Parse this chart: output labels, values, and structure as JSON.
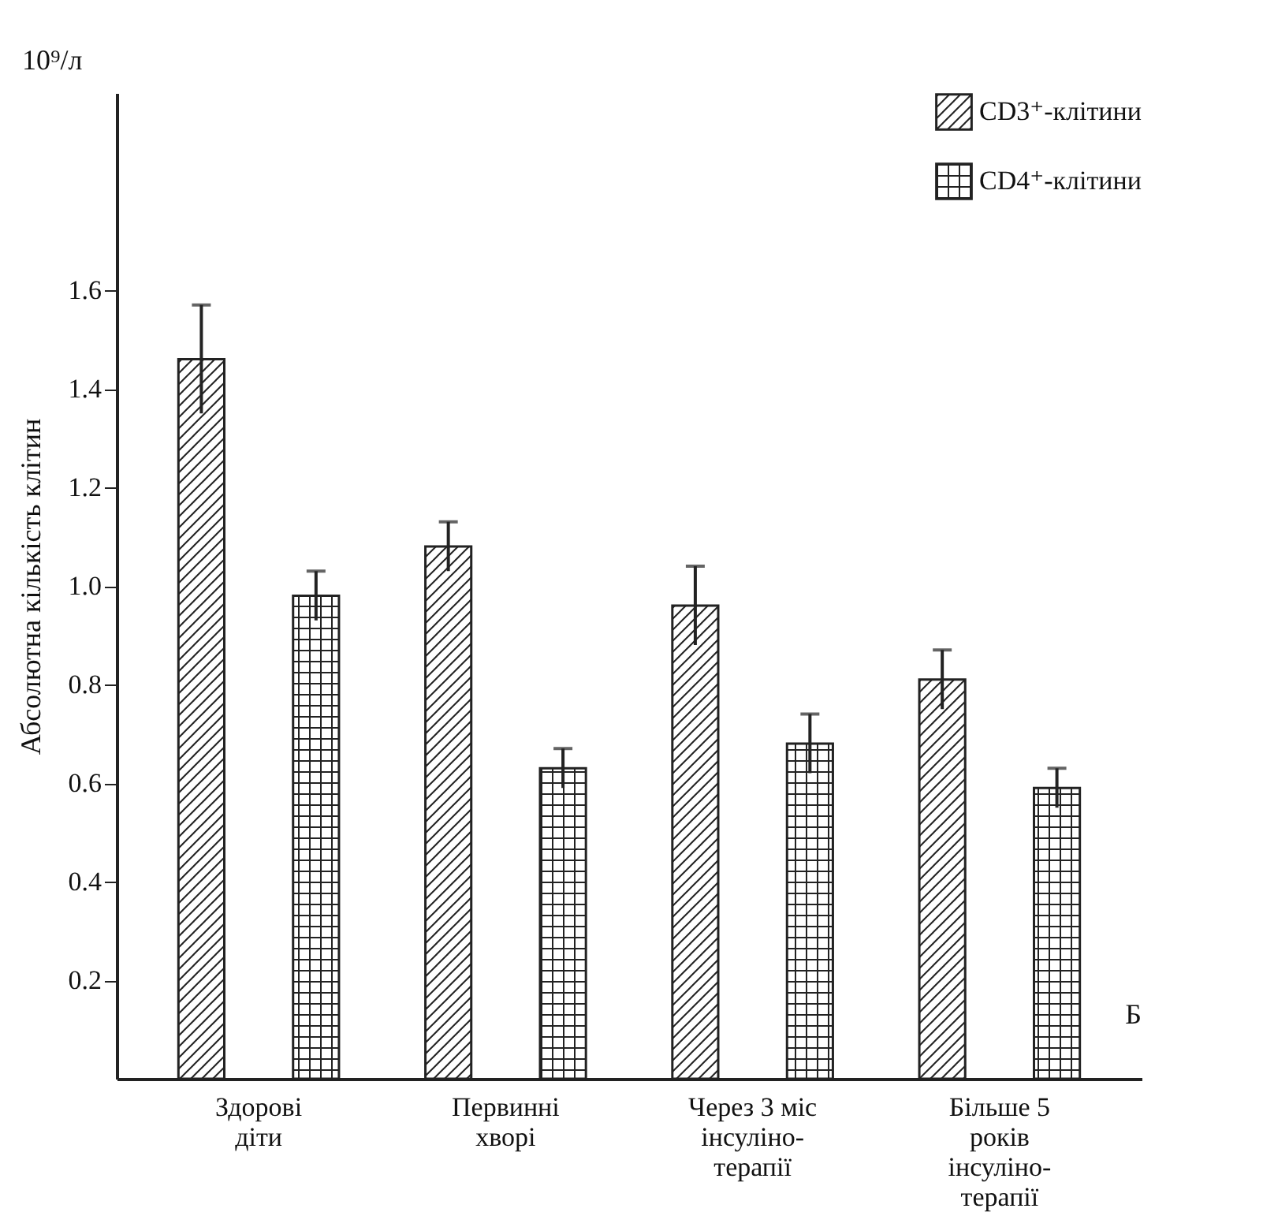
{
  "chart_data": {
    "type": "bar",
    "ylabel": "Абсолютна кількість клітин",
    "annotations": [
      "10⁹/л",
      "Б"
    ],
    "categories": [
      "Здорові\nдіти",
      "Первинні\nхворі",
      "Через 3 міс\nінсуліно-\nтерапії",
      "Більше 5\nроків\nінсуліно-\nтерапії"
    ],
    "series": [
      {
        "name": "CD3⁺-клітини",
        "color": "#222222",
        "values": [
          1.46,
          1.08,
          0.96,
          0.81
        ],
        "errors": [
          0.11,
          0.05,
          0.08,
          0.06
        ]
      },
      {
        "name": "CD4⁺-клітини",
        "color": "#222222",
        "values": [
          0.98,
          0.63,
          0.68,
          0.59
        ],
        "errors": [
          0.05,
          0.04,
          0.06,
          0.04
        ]
      }
    ],
    "ylim": [
      0,
      2.0
    ],
    "yticks": [
      0.2,
      0.4,
      0.6,
      0.8,
      {
        "value": 1,
        "label": "1.0"
      },
      1.2,
      1.4,
      1.6
    ],
    "legend": "top right"
  }
}
